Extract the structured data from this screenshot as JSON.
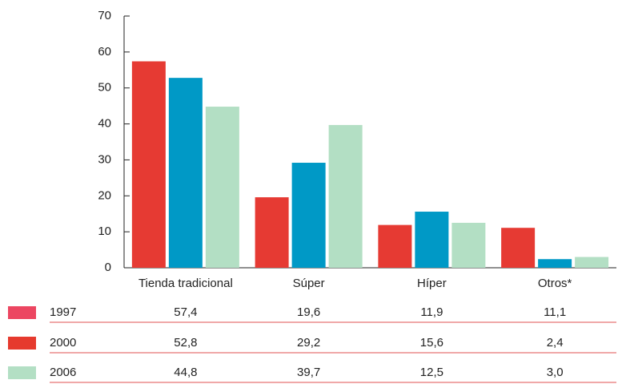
{
  "chart_data": {
    "type": "bar",
    "categories": [
      "Tienda tradicional",
      "Súper",
      "Híper",
      "Otros*"
    ],
    "series": [
      {
        "name": "1997",
        "color": "#e63a33",
        "swatch_color": "#ec4661",
        "values": [
          57.4,
          19.6,
          11.9,
          11.1
        ],
        "value_labels": [
          "57,4",
          "19,6",
          "11,9",
          "11,1"
        ]
      },
      {
        "name": "2000",
        "color": "#0099c6",
        "swatch_color": "#e63a2e",
        "values": [
          52.8,
          29.2,
          15.6,
          2.4
        ],
        "value_labels": [
          "52,8",
          "29,2",
          "15,6",
          "2,4"
        ]
      },
      {
        "name": "2006",
        "color": "#b3dfc4",
        "swatch_color": "#b3dfc4",
        "values": [
          44.8,
          39.7,
          12.5,
          3.0
        ],
        "value_labels": [
          "44,8",
          "39,7",
          "12,5",
          "3,0"
        ]
      }
    ],
    "ylim": [
      0,
      70
    ],
    "yticks": [
      0,
      10,
      20,
      30,
      40,
      50,
      60,
      70
    ],
    "grid": false
  }
}
